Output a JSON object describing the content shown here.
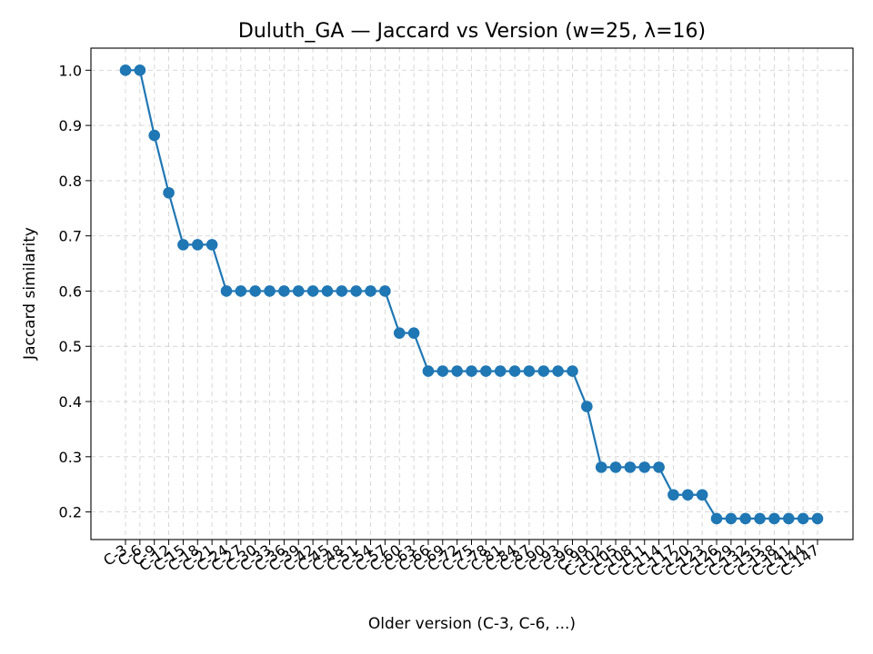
{
  "chart_data": {
    "type": "line",
    "title": "Duluth_GA — Jaccard vs Version (w=25, λ=16)",
    "xlabel": "Older version (C-3, C-6, ...)",
    "ylabel": "Jaccard similarity",
    "ylim": [
      0.15,
      1.04
    ],
    "yticks": [
      0.2,
      0.3,
      0.4,
      0.5,
      0.6,
      0.7,
      0.8,
      0.9,
      1.0
    ],
    "grid": true,
    "marker": "circle",
    "color": "#1f77b4",
    "categories": [
      "C-3",
      "C-6",
      "C-9",
      "C-12",
      "C-15",
      "C-18",
      "C-21",
      "C-24",
      "C-27",
      "C-30",
      "C-33",
      "C-36",
      "C-39",
      "C-42",
      "C-45",
      "C-48",
      "C-51",
      "C-54",
      "C-57",
      "C-60",
      "C-63",
      "C-66",
      "C-69",
      "C-72",
      "C-75",
      "C-78",
      "C-81",
      "C-84",
      "C-87",
      "C-90",
      "C-93",
      "C-96",
      "C-99",
      "C-102",
      "C-105",
      "C-108",
      "C-111",
      "C-114",
      "C-117",
      "C-120",
      "C-123",
      "C-126",
      "C-129",
      "C-132",
      "C-135",
      "C-138",
      "C-141",
      "C-144",
      "C-147"
    ],
    "values": [
      1.0,
      1.0,
      0.882,
      0.778,
      0.684,
      0.684,
      0.684,
      0.6,
      0.6,
      0.6,
      0.6,
      0.6,
      0.6,
      0.6,
      0.6,
      0.6,
      0.6,
      0.6,
      0.6,
      0.524,
      0.524,
      0.455,
      0.455,
      0.455,
      0.455,
      0.455,
      0.455,
      0.455,
      0.455,
      0.455,
      0.455,
      0.455,
      0.391,
      0.281,
      0.281,
      0.281,
      0.281,
      0.281,
      0.231,
      0.231,
      0.231,
      0.188,
      0.188,
      0.188,
      0.188,
      0.188,
      0.188,
      0.188,
      0.188
    ]
  }
}
